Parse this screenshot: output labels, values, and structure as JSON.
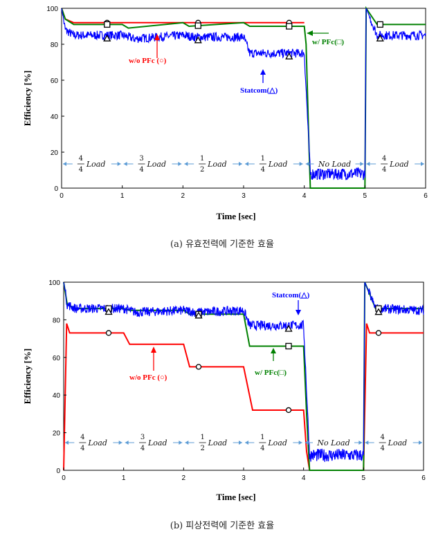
{
  "chart_data": [
    {
      "type": "line",
      "caption": "(a) 유효전력에 기준한 효율",
      "xlabel": "Time [sec]",
      "ylabel": "Efficiency [%]",
      "xlim": [
        0,
        6
      ],
      "ylim": [
        0,
        100
      ],
      "xticks": [
        "0",
        "1",
        "2",
        "3",
        "4",
        "5",
        "6"
      ],
      "yticks": [
        "0",
        "20",
        "40",
        "60",
        "80",
        "100"
      ],
      "grid": false,
      "series": [
        {
          "name": "w/o PFc (○)",
          "color": "#ff0000",
          "marker": "circle",
          "x": [
            0.0,
            0.06,
            0.2,
            1.0,
            1.9,
            2.1,
            3.0,
            4.0
          ],
          "y": [
            100,
            94,
            92,
            92,
            92,
            92,
            92,
            92
          ]
        },
        {
          "name": "w/ PFc(□)",
          "color": "#008000",
          "marker": "square",
          "x": [
            0.0,
            0.06,
            0.2,
            0.7,
            1.0,
            1.1,
            2.0,
            2.1,
            3.0,
            3.1,
            4.0,
            4.03,
            4.08,
            4.1,
            5.0,
            5.02,
            5.2,
            6.0
          ],
          "y": [
            100,
            94,
            91,
            91,
            91,
            89,
            92,
            90,
            92,
            90,
            90,
            80,
            20,
            0,
            0,
            100,
            91,
            91
          ]
        },
        {
          "name": "Statcom(△)",
          "color": "#0000ff",
          "marker": "triangle",
          "x": [
            0.0,
            0.06,
            0.2,
            1.0,
            1.2,
            2.0,
            2.2,
            3.0,
            3.1,
            4.0,
            4.1,
            5.0,
            5.02,
            5.2,
            6.0
          ],
          "y": [
            100,
            88,
            85,
            85,
            83,
            85,
            84,
            84,
            75,
            75,
            8,
            8,
            100,
            85,
            85
          ]
        }
      ],
      "markers": {
        "circle_x": [
          0.75,
          2.25,
          3.75
        ],
        "square_x": [
          0.75,
          2.25,
          3.75,
          5.25
        ],
        "triangle_x": [
          0.75,
          2.25,
          3.75,
          5.25
        ]
      },
      "annotations": {
        "wo_pfc": "w/o PFc (○)",
        "w_pfc": "w/ PFc(□)",
        "statcom": "Statcom(△)"
      },
      "load_segments": [
        {
          "num": "4",
          "den": "4",
          "text": "Load"
        },
        {
          "num": "3",
          "den": "4",
          "text": "Load"
        },
        {
          "num": "1",
          "den": "2",
          "text": "Load"
        },
        {
          "num": "1",
          "den": "4",
          "text": "Load"
        },
        {
          "num": "",
          "den": "",
          "text": "No Load"
        },
        {
          "num": "4",
          "den": "4",
          "text": "Load"
        }
      ]
    },
    {
      "type": "line",
      "caption": "(b) 피상전력에 기준한 효율",
      "xlabel": "Time [sec]",
      "ylabel": "Efficiency [%]",
      "xlim": [
        0,
        6
      ],
      "ylim": [
        0,
        100
      ],
      "xticks": [
        "0",
        "1",
        "2",
        "3",
        "4",
        "5",
        "6"
      ],
      "yticks": [
        "0",
        "20",
        "40",
        "60",
        "80",
        "100"
      ],
      "grid": false,
      "series": [
        {
          "name": "w/o PFc (○)",
          "color": "#ff0000",
          "marker": "circle",
          "x": [
            0.0,
            0.05,
            0.1,
            0.2,
            1.0,
            1.1,
            2.0,
            2.1,
            3.0,
            3.15,
            4.0,
            4.05,
            4.1,
            5.0,
            5.05,
            5.1,
            5.2,
            6.0
          ],
          "y": [
            0,
            78,
            73,
            73,
            73,
            67,
            67,
            55,
            55,
            32,
            32,
            10,
            0,
            0,
            78,
            73,
            73,
            73
          ]
        },
        {
          "name": "w/ PFc(□)",
          "color": "#008000",
          "marker": "square",
          "x": [
            0.0,
            0.06,
            0.2,
            1.0,
            1.1,
            2.0,
            2.1,
            3.0,
            3.1,
            4.0,
            4.05,
            4.1,
            5.0,
            5.02,
            5.2,
            6.0
          ],
          "y": [
            100,
            88,
            86,
            86,
            85,
            85,
            83,
            83,
            66,
            66,
            30,
            0,
            0,
            100,
            86,
            86
          ]
        },
        {
          "name": "Statcom(△)",
          "color": "#0000ff",
          "marker": "triangle",
          "x": [
            0.0,
            0.06,
            0.2,
            1.0,
            1.2,
            2.0,
            2.2,
            3.0,
            3.1,
            4.0,
            4.1,
            5.0,
            5.02,
            5.2,
            6.0
          ],
          "y": [
            100,
            88,
            86,
            86,
            84,
            85,
            84,
            85,
            77,
            77,
            8,
            8,
            100,
            86,
            85
          ]
        }
      ],
      "markers": {
        "circle_x": [
          0.75,
          2.25,
          3.75,
          5.25
        ],
        "square_x": [
          0.75,
          2.25,
          3.75,
          5.25
        ],
        "triangle_x": [
          0.75,
          2.25,
          3.75,
          5.25
        ]
      },
      "annotations": {
        "wo_pfc": "w/o PFc (○)",
        "w_pfc": "w/ PFc(□)",
        "statcom": "Statcom(△)"
      },
      "load_segments": [
        {
          "num": "4",
          "den": "4",
          "text": "Load"
        },
        {
          "num": "3",
          "den": "4",
          "text": "Load"
        },
        {
          "num": "1",
          "den": "2",
          "text": "Load"
        },
        {
          "num": "1",
          "den": "4",
          "text": "Load"
        },
        {
          "num": "",
          "den": "",
          "text": "No Load"
        },
        {
          "num": "4",
          "den": "4",
          "text": "Load"
        }
      ]
    }
  ]
}
